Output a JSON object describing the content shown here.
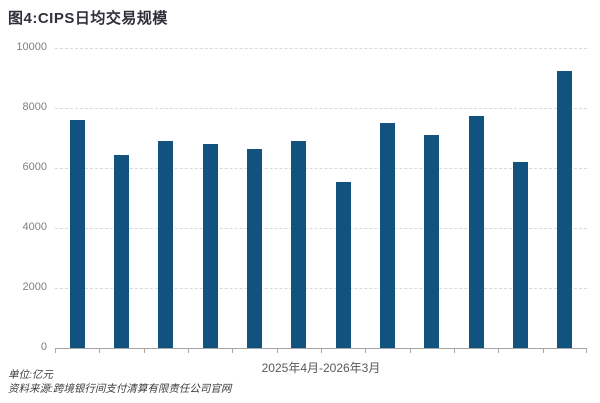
{
  "title": "图4:CIPS日均交易规模",
  "footer": {
    "unit": "单位:亿元",
    "source": "资料来源:跨境银行间支付清算有限责任公司官网"
  },
  "chart_data": {
    "type": "bar",
    "title": "图4:CIPS日均交易规模",
    "xlabel": "2025年4月-2026年3月",
    "ylabel": "",
    "unit": "亿元",
    "values": [
      7600,
      6450,
      6900,
      6800,
      6650,
      6900,
      5550,
      7500,
      7100,
      7750,
      6200,
      9250
    ],
    "yticks": [
      0,
      2000,
      4000,
      6000,
      8000,
      10000
    ],
    "ylim": [
      0,
      10000
    ],
    "grid": true,
    "legend": false,
    "style": {
      "bar_color": "#12527f",
      "grid_color": "#d9d9d9",
      "axis_color": "#a6a6a6",
      "tick_label_color": "#808080",
      "title_color": "#302f3a"
    }
  }
}
